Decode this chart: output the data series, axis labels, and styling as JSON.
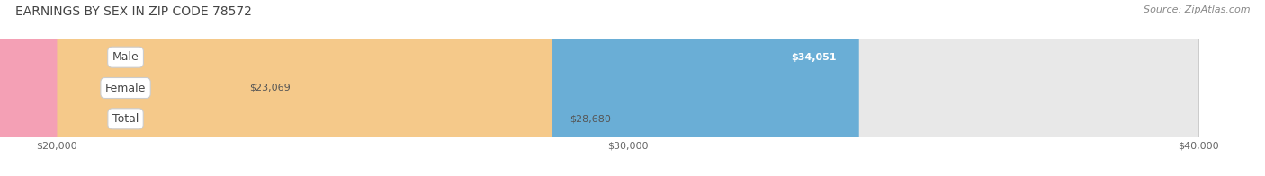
{
  "title": "EARNINGS BY SEX IN ZIP CODE 78572",
  "source": "Source: ZipAtlas.com",
  "categories": [
    "Male",
    "Female",
    "Total"
  ],
  "values": [
    34051,
    23069,
    28680
  ],
  "bar_colors": [
    "#6aaed6",
    "#f4a0b5",
    "#f5c98a"
  ],
  "bar_labels": [
    "$34,051",
    "$23,069",
    "$28,680"
  ],
  "label_in_bar": [
    true,
    false,
    false
  ],
  "xmin": 20000,
  "xmax": 40000,
  "xticks": [
    20000,
    30000,
    40000
  ],
  "xtick_labels": [
    "$20,000",
    "$30,000",
    "$40,000"
  ],
  "background_color": "#ffffff",
  "bar_bg_color": "#e8e8e8",
  "figwidth": 14.06,
  "figheight": 1.96,
  "title_fontsize": 10,
  "source_fontsize": 8,
  "bar_label_fontsize": 8,
  "category_fontsize": 9,
  "tick_fontsize": 8
}
